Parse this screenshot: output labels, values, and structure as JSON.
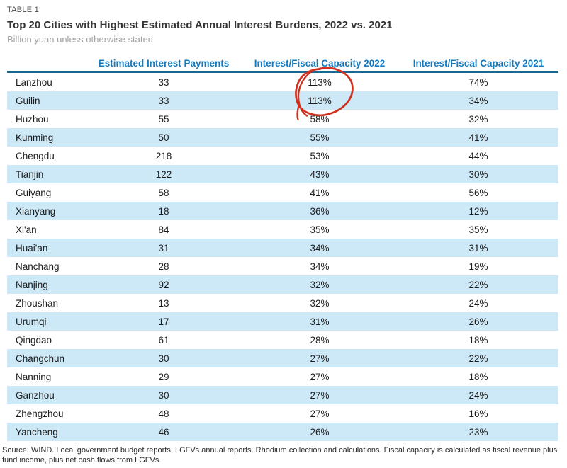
{
  "colors": {
    "header_blue": "#147abd",
    "rule_blue": "#176a94",
    "row_blue": "#cde8f6",
    "annotation_red": "#d0301d",
    "title_dark": "#353535",
    "kicker_gray": "#4a4a4a",
    "subtitle_gray": "#a2a2a2",
    "text_dark": "#1d1d1d",
    "source_dark": "#2a2a2a"
  },
  "chart_data": {
    "type": "table",
    "table_label": "TABLE 1",
    "title": "Top 20 Cities with Highest Estimated Annual Interest Burdens, 2022 vs. 2021",
    "subtitle": "Billion yuan unless otherwise stated",
    "column_headers": [
      "",
      "Estimated Interest Payments",
      "Interest/Fiscal Capacity 2022",
      "Interest/Fiscal Capacity 2021"
    ],
    "rows": [
      {
        "city": "Lanzhou",
        "payments": "33",
        "ifc_2022": "113%",
        "ifc_2021": "74%"
      },
      {
        "city": "Guilin",
        "payments": "33",
        "ifc_2022": "113%",
        "ifc_2021": "34%"
      },
      {
        "city": "Huzhou",
        "payments": "55",
        "ifc_2022": "58%",
        "ifc_2021": "32%"
      },
      {
        "city": "Kunming",
        "payments": "50",
        "ifc_2022": "55%",
        "ifc_2021": "41%"
      },
      {
        "city": "Chengdu",
        "payments": "218",
        "ifc_2022": "53%",
        "ifc_2021": "44%"
      },
      {
        "city": "Tianjin",
        "payments": "122",
        "ifc_2022": "43%",
        "ifc_2021": "30%"
      },
      {
        "city": "Guiyang",
        "payments": "58",
        "ifc_2022": "41%",
        "ifc_2021": "56%"
      },
      {
        "city": "Xianyang",
        "payments": "18",
        "ifc_2022": "36%",
        "ifc_2021": "12%"
      },
      {
        "city": "Xi'an",
        "payments": "84",
        "ifc_2022": "35%",
        "ifc_2021": "35%"
      },
      {
        "city": "Huai'an",
        "payments": "31",
        "ifc_2022": "34%",
        "ifc_2021": "31%"
      },
      {
        "city": "Nanchang",
        "payments": "28",
        "ifc_2022": "34%",
        "ifc_2021": "19%"
      },
      {
        "city": "Nanjing",
        "payments": "92",
        "ifc_2022": "32%",
        "ifc_2021": "22%"
      },
      {
        "city": "Zhoushan",
        "payments": "13",
        "ifc_2022": "32%",
        "ifc_2021": "24%"
      },
      {
        "city": "Urumqi",
        "payments": "17",
        "ifc_2022": "31%",
        "ifc_2021": "26%"
      },
      {
        "city": "Qingdao",
        "payments": "61",
        "ifc_2022": "28%",
        "ifc_2021": "18%"
      },
      {
        "city": "Changchun",
        "payments": "30",
        "ifc_2022": "27%",
        "ifc_2021": "22%"
      },
      {
        "city": "Nanning",
        "payments": "29",
        "ifc_2022": "27%",
        "ifc_2021": "18%"
      },
      {
        "city": "Ganzhou",
        "payments": "30",
        "ifc_2022": "27%",
        "ifc_2021": "24%"
      },
      {
        "city": "Zhengzhou",
        "payments": "48",
        "ifc_2022": "27%",
        "ifc_2021": "16%"
      },
      {
        "city": "Yancheng",
        "payments": "46",
        "ifc_2022": "26%",
        "ifc_2021": "23%"
      }
    ],
    "annotation": {
      "shape": "hand-drawn red circle",
      "highlights": "113% values for Lanzhou and Guilin in Interest/Fiscal Capacity 2022 column"
    },
    "source": "Source: WIND. Local government budget reports. LGFVs annual reports. Rhodium collection and calculations.  Fiscal capacity is calculated as fiscal revenue plus fund income, plus net cash flows from LGFVs."
  }
}
